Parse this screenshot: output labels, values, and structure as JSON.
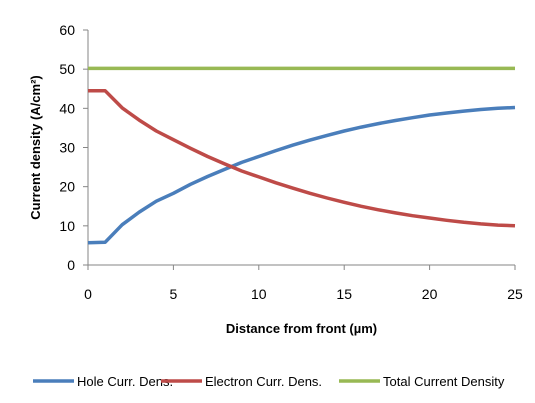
{
  "chart_data": {
    "type": "line",
    "xlabel": "Distance from front (µm)",
    "ylabel": "Current density (A/cm²)",
    "xlim": [
      0,
      25
    ],
    "ylim": [
      0,
      60
    ],
    "xticks": [
      0,
      5,
      10,
      15,
      20,
      25
    ],
    "yticks": [
      0,
      10,
      20,
      30,
      40,
      50,
      60
    ],
    "grid": false,
    "legend_position": "bottom",
    "series": [
      {
        "name": "Hole Curr. Dens.",
        "color": "#4a7ebb",
        "x": [
          0,
          1,
          2,
          3,
          4,
          5,
          6,
          7,
          8,
          9,
          10,
          11,
          12,
          13,
          14,
          15,
          16,
          17,
          18,
          19,
          20,
          21,
          22,
          23,
          24,
          25
        ],
        "y": [
          5.7,
          5.8,
          10.3,
          13.5,
          16.3,
          18.3,
          20.6,
          22.6,
          24.4,
          26.2,
          27.7,
          29.2,
          30.6,
          31.9,
          33.1,
          34.2,
          35.2,
          36.1,
          36.9,
          37.6,
          38.3,
          38.8,
          39.3,
          39.7,
          40.0,
          40.2
        ]
      },
      {
        "name": "Electron Curr. Dens.",
        "color": "#be4b48",
        "x": [
          0,
          1,
          2,
          3,
          4,
          5,
          6,
          7,
          8,
          9,
          10,
          11,
          12,
          13,
          14,
          15,
          16,
          17,
          18,
          19,
          20,
          21,
          22,
          23,
          24,
          25
        ],
        "y": [
          44.5,
          44.5,
          40.1,
          37.0,
          34.2,
          32.0,
          29.8,
          27.7,
          25.8,
          24.0,
          22.5,
          21.0,
          19.6,
          18.3,
          17.1,
          16.0,
          15.0,
          14.1,
          13.3,
          12.6,
          12.0,
          11.4,
          10.9,
          10.5,
          10.2,
          10.0
        ]
      },
      {
        "name": "Total Current Density",
        "color": "#98b954",
        "x": [
          0,
          25
        ],
        "y": [
          50.2,
          50.2
        ]
      }
    ]
  }
}
